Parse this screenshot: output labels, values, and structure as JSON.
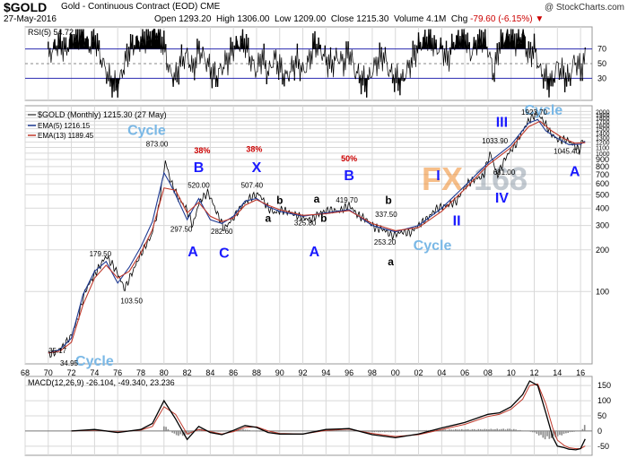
{
  "header": {
    "symbol": "$GOLD",
    "name": "Gold - Continuous Contract (EOD)",
    "exchange": "CME",
    "credit": "@ StockCharts.com",
    "date": "27-May-2016",
    "open_label": "Open",
    "open": "1293.20",
    "high_label": "High",
    "high": "1306.00",
    "low_label": "Low",
    "low": "1209.00",
    "close_label": "Close",
    "close": "1215.30",
    "volume_label": "Volume",
    "volume": "4.1M",
    "chg_label": "Chg",
    "chg": "-79.60 (-6.15%)"
  },
  "watermark": {
    "text1": "FX",
    "text2": "168",
    "color1": "#f08a2a",
    "color2": "#9aa6b2"
  },
  "colors": {
    "grid": "#d8d8d8",
    "price": "#000000",
    "ema5": "#1f3a93",
    "ema13": "#c0392b",
    "wave_blue": "#1a1aff",
    "cycle": "#7ab8e6",
    "pct_red": "#cc0000",
    "rsi_fill": "#000000"
  },
  "chart_data": [
    {
      "type": "line",
      "panel": "rsi",
      "legend": "RSI(5) 54.72",
      "y_ticks": [
        30,
        50,
        70
      ],
      "ylim": [
        0,
        100
      ],
      "reference_lines": [
        30,
        50,
        70
      ],
      "x": [
        1970,
        1970.5,
        1971,
        1971.5,
        1972,
        1972.5,
        1973,
        1973.5,
        1974,
        1974.5,
        1975,
        1975.5,
        1976,
        1976.5,
        1977,
        1977.5,
        1978,
        1978.5,
        1979,
        1979.5,
        1980,
        1980.5,
        1981,
        1981.5,
        1982,
        1982.5,
        1983,
        1983.5,
        1984,
        1984.5,
        1985,
        1985.5,
        1986,
        1986.5,
        1987,
        1987.5,
        1988,
        1988.5,
        1989,
        1989.5,
        1990,
        1990.5,
        1991,
        1991.5,
        1992,
        1992.5,
        1993,
        1993.5,
        1994,
        1994.5,
        1995,
        1995.5,
        1996,
        1996.5,
        1997,
        1997.5,
        1998,
        1998.5,
        1999,
        1999.5,
        2000,
        2000.5,
        2001,
        2001.5,
        2002,
        2002.5,
        2003,
        2003.5,
        2004,
        2004.5,
        2005,
        2005.5,
        2006,
        2006.5,
        2007,
        2007.5,
        2008,
        2008.5,
        2009,
        2009.5,
        2010,
        2010.5,
        2011,
        2011.5,
        2012,
        2012.5,
        2013,
        2013.5,
        2014,
        2014.5,
        2015,
        2015.5,
        2016,
        2016.4
      ],
      "values": [
        60,
        72,
        80,
        68,
        85,
        90,
        95,
        72,
        88,
        60,
        40,
        22,
        18,
        45,
        70,
        78,
        82,
        88,
        92,
        95,
        75,
        38,
        30,
        55,
        62,
        40,
        70,
        58,
        42,
        30,
        45,
        55,
        72,
        78,
        80,
        55,
        40,
        62,
        35,
        58,
        45,
        30,
        42,
        55,
        38,
        52,
        78,
        70,
        55,
        48,
        60,
        50,
        68,
        40,
        30,
        22,
        40,
        55,
        62,
        38,
        30,
        25,
        40,
        58,
        75,
        82,
        88,
        70,
        72,
        55,
        78,
        85,
        90,
        62,
        80,
        88,
        70,
        35,
        78,
        85,
        90,
        80,
        92,
        60,
        72,
        40,
        30,
        22,
        48,
        35,
        28,
        55,
        42,
        54.72
      ]
    },
    {
      "type": "line",
      "panel": "price",
      "scale": "log",
      "title": "$GOLD (Monthly) 1215.30 (27 May)",
      "y_ticks": [
        100,
        200,
        300,
        400,
        500,
        600,
        700,
        800,
        900,
        1000,
        1100,
        1200,
        1300,
        1400,
        1500,
        1600,
        1700,
        1800,
        1900,
        2000
      ],
      "y_tick_labels": [
        "100",
        "200",
        "300",
        "400",
        "500",
        "600",
        "700",
        "800",
        "900",
        "1000",
        "1100",
        "1200",
        "1300",
        "1400",
        "1500",
        "1600",
        "1700",
        "1800",
        "1900",
        "2000"
      ],
      "ylim": [
        30,
        2200
      ],
      "x_ticks": [
        1968,
        1970,
        1972,
        1974,
        1976,
        1978,
        1980,
        1982,
        1984,
        1986,
        1988,
        1990,
        1992,
        1994,
        1996,
        1998,
        2000,
        2002,
        2004,
        2006,
        2008,
        2010,
        2012,
        2014,
        2016
      ],
      "x_tick_labels": [
        "68",
        "70",
        "72",
        "74",
        "76",
        "78",
        "80",
        "82",
        "84",
        "86",
        "88",
        "90",
        "92",
        "94",
        "96",
        "98",
        "00",
        "02",
        "04",
        "06",
        "08",
        "10",
        "12",
        "14",
        "16"
      ],
      "series": [
        {
          "name": "$GOLD (Monthly) 1215.30 (27 May)",
          "x": [
            1970.0,
            1970.6,
            1971.3,
            1972.0,
            1972.6,
            1973.2,
            1973.7,
            1974.4,
            1975.0,
            1975.7,
            1976.6,
            1977.4,
            1978.2,
            1978.9,
            1979.5,
            1979.9,
            1980.1,
            1980.6,
            1981.2,
            1981.9,
            1982.5,
            1983.1,
            1983.8,
            1984.5,
            1985.2,
            1986.0,
            1986.8,
            1987.5,
            1988.2,
            1989.0,
            1989.6,
            1990.2,
            1991.0,
            1992.0,
            1992.7,
            1993.5,
            1994.3,
            1995.1,
            1996.0,
            1996.7,
            1997.5,
            1998.2,
            1999.0,
            1999.7,
            2000.6,
            2001.3,
            2002.0,
            2002.8,
            2003.6,
            2004.5,
            2005.3,
            2006.2,
            2006.9,
            2007.6,
            2008.2,
            2008.8,
            2009.6,
            2010.4,
            2011.2,
            2011.7,
            2012.3,
            2012.8,
            2013.4,
            2014.0,
            2014.8,
            2015.4,
            2015.9,
            2016.2,
            2016.4
          ],
          "values": [
            35.17,
            36,
            40,
            48,
            65,
            100,
            120,
            150,
            179.5,
            150,
            103.5,
            145,
            200,
            250,
            380,
            650,
            873.0,
            620,
            480,
            400,
            297.5,
            450,
            520.0,
            380,
            282.6,
            340,
            420,
            480,
            507.4,
            400,
            370,
            390,
            370,
            340,
            330,
            370,
            390,
            380,
            419.7,
            360,
            330,
            290,
            280,
            253.2,
            270,
            265,
            300,
            340,
            400,
            420,
            450,
            600,
            650,
            680,
            1000,
            681.0,
            950,
            1150,
            1550,
            1800,
            1923.7,
            1700,
            1400,
            1250,
            1250,
            1150,
            1045.4,
            1250,
            1215.3
          ]
        },
        {
          "name": "EMA(5) 1216.15",
          "x": [
            1970,
            1971,
            1972,
            1973,
            1974,
            1975,
            1976,
            1977,
            1978,
            1979,
            1980,
            1980.5,
            1981,
            1982,
            1983,
            1984,
            1985,
            1986,
            1987,
            1988,
            1989,
            1990,
            1992,
            1994,
            1996,
            1998,
            2000,
            2002,
            2004,
            2006,
            2008,
            2010,
            2011.5,
            2012.3,
            2013,
            2014,
            2015,
            2016,
            2016.4
          ],
          "values": [
            36,
            38,
            46,
            95,
            140,
            165,
            115,
            150,
            210,
            320,
            720,
            610,
            500,
            330,
            470,
            330,
            310,
            350,
            450,
            470,
            410,
            380,
            350,
            370,
            390,
            300,
            270,
            300,
            400,
            580,
            850,
            1150,
            1650,
            1750,
            1450,
            1280,
            1150,
            1160,
            1216.15
          ]
        },
        {
          "name": "EMA(13) 1189.45",
          "x": [
            1970,
            1971,
            1972,
            1973,
            1974,
            1975,
            1976,
            1977,
            1978,
            1979,
            1980,
            1981,
            1982,
            1983,
            1984,
            1985,
            1986,
            1987,
            1988,
            1989,
            1990,
            1992,
            1994,
            1996,
            1998,
            2000,
            2002,
            2004,
            2006,
            2008,
            2010,
            2011.5,
            2012.5,
            2013.5,
            2014.5,
            2015.5,
            2016.4
          ],
          "values": [
            36,
            37,
            43,
            80,
            125,
            155,
            125,
            140,
            190,
            280,
            560,
            540,
            370,
            440,
            350,
            320,
            340,
            420,
            460,
            420,
            390,
            355,
            365,
            385,
            310,
            275,
            290,
            380,
            550,
            820,
            1100,
            1550,
            1700,
            1450,
            1280,
            1180,
            1189.45
          ]
        }
      ],
      "annotations": [
        {
          "text": "Cycle",
          "kind": "cycle",
          "x": 1974,
          "y": 24
        },
        {
          "text": "34.95",
          "kind": "value",
          "x": 1971.8,
          "y": 27
        },
        {
          "text": "35.17",
          "kind": "value",
          "x": 1970.8,
          "y": 36
        },
        {
          "text": "179.50",
          "kind": "value",
          "x": 1974.5,
          "y": 180
        },
        {
          "text": "103.50",
          "kind": "value",
          "x": 1977.2,
          "y": 82
        },
        {
          "text": "Cycle",
          "kind": "cycle",
          "x": 1978.5,
          "y": 1350
        },
        {
          "text": "873.00",
          "kind": "value",
          "x": 1979.4,
          "y": 1120
        },
        {
          "text": "38%",
          "kind": "pct",
          "x": 1983.3,
          "y": 1000
        },
        {
          "text": "B",
          "kind": "wave",
          "x": 1983.0,
          "y": 730
        },
        {
          "text": "520.00",
          "kind": "value",
          "x": 1983.0,
          "y": 560
        },
        {
          "text": "297.50",
          "kind": "value",
          "x": 1981.5,
          "y": 270
        },
        {
          "text": "A",
          "kind": "wave",
          "x": 1982.5,
          "y": 180
        },
        {
          "text": "282.60",
          "kind": "value",
          "x": 1985.0,
          "y": 260
        },
        {
          "text": "C",
          "kind": "wave",
          "x": 1985.2,
          "y": 175
        },
        {
          "text": "38%",
          "kind": "pct",
          "x": 1987.8,
          "y": 1020
        },
        {
          "text": "X",
          "kind": "wave",
          "x": 1988.0,
          "y": 730
        },
        {
          "text": "507.40",
          "kind": "value",
          "x": 1987.6,
          "y": 560
        },
        {
          "text": "b",
          "kind": "minor",
          "x": 1990.0,
          "y": 430
        },
        {
          "text": "a",
          "kind": "minor",
          "x": 1989.0,
          "y": 318
        },
        {
          "text": "a",
          "kind": "minor",
          "x": 1993.2,
          "y": 440
        },
        {
          "text": "325.80",
          "kind": "value",
          "x": 1992.2,
          "y": 300
        },
        {
          "text": "b",
          "kind": "minor",
          "x": 1993.8,
          "y": 320
        },
        {
          "text": "A",
          "kind": "wave",
          "x": 1993.0,
          "y": 180
        },
        {
          "text": "50%",
          "kind": "pct",
          "x": 1996.0,
          "y": 870
        },
        {
          "text": "B",
          "kind": "wave",
          "x": 1996.0,
          "y": 640
        },
        {
          "text": "419.70",
          "kind": "value",
          "x": 1995.8,
          "y": 440
        },
        {
          "text": "b",
          "kind": "minor",
          "x": 1999.4,
          "y": 430
        },
        {
          "text": "337.50",
          "kind": "value",
          "x": 1999.2,
          "y": 345
        },
        {
          "text": "253.20",
          "kind": "value",
          "x": 1999.1,
          "y": 218
        },
        {
          "text": "a",
          "kind": "minor",
          "x": 1999.6,
          "y": 155
        },
        {
          "text": "Cycle",
          "kind": "cycle",
          "x": 2003.2,
          "y": 200
        },
        {
          "text": "I",
          "kind": "wave",
          "x": 2003.7,
          "y": 640
        },
        {
          "text": "II",
          "kind": "wave",
          "x": 2005.3,
          "y": 300
        },
        {
          "text": "III",
          "kind": "wave",
          "x": 2009.2,
          "y": 1550
        },
        {
          "text": "1033.90",
          "kind": "value",
          "x": 2008.6,
          "y": 1180
        },
        {
          "text": "681.00",
          "kind": "value",
          "x": 2009.4,
          "y": 700
        },
        {
          "text": "IV",
          "kind": "wave",
          "x": 2009.2,
          "y": 440
        },
        {
          "text": "Cycle",
          "kind": "cycle",
          "x": 2012.8,
          "y": 3400
        },
        {
          "text": "1923.70",
          "kind": "value",
          "x": 2012.0,
          "y": 2550
        },
        {
          "text": "1045.40",
          "kind": "value",
          "x": 2014.8,
          "y": 990
        },
        {
          "text": "A",
          "kind": "wave",
          "x": 2015.5,
          "y": 680
        }
      ]
    },
    {
      "type": "line",
      "panel": "macd",
      "legend": "MACD(12,26,9) -26.104, -49.340, 23.236",
      "y_ticks": [
        -50,
        0,
        50,
        100,
        150
      ],
      "ylim": [
        -80,
        180
      ],
      "series": [
        {
          "name": "MACD(12,26,9) -26.104",
          "x": [
            1972,
            1974,
            1976,
            1978,
            1979,
            1980,
            1981,
            1982,
            1983,
            1984,
            1985,
            1986,
            1987,
            1988,
            1989,
            1990,
            1992,
            1994,
            1996,
            1998,
            2000,
            2002,
            2004,
            2006,
            2008,
            2009,
            2010,
            2011,
            2011.6,
            2012.3,
            2013,
            2013.6,
            2014,
            2014.6,
            2015,
            2015.6,
            2016,
            2016.4
          ],
          "values": [
            0,
            5,
            -5,
            5,
            25,
            100,
            40,
            -28,
            15,
            -5,
            -12,
            2,
            18,
            12,
            -5,
            -10,
            -10,
            5,
            8,
            -12,
            -22,
            -10,
            10,
            28,
            55,
            60,
            80,
            120,
            165,
            150,
            60,
            -20,
            -50,
            -55,
            -60,
            -62,
            -58,
            -26.104
          ]
        },
        {
          "name": "-49.340",
          "x": [
            1972,
            1974,
            1976,
            1978,
            1979,
            1980,
            1981,
            1982,
            1983,
            1984,
            1985,
            1986,
            1987,
            1988,
            1989,
            1990,
            1992,
            1994,
            1996,
            1998,
            2000,
            2002,
            2004,
            2006,
            2008,
            2009,
            2010,
            2011,
            2011.6,
            2012.3,
            2013,
            2013.6,
            2014,
            2014.6,
            2015,
            2015.6,
            2016,
            2016.4
          ],
          "values": [
            0,
            3,
            -3,
            3,
            15,
            80,
            55,
            -10,
            5,
            -2,
            -10,
            -2,
            12,
            14,
            0,
            -8,
            -10,
            2,
            6,
            -8,
            -18,
            -12,
            5,
            22,
            48,
            55,
            72,
            105,
            150,
            155,
            90,
            10,
            -30,
            -48,
            -55,
            -58,
            -58,
            -49.34
          ]
        },
        {
          "name": "23.236",
          "type": "histogram",
          "x": [
            1980,
            1981,
            1982,
            1983,
            1984,
            1985,
            1986,
            1987,
            1988,
            1990,
            1992,
            1994,
            1996,
            1998,
            2000,
            2002,
            2004,
            2006,
            2008,
            2010,
            2012,
            2013,
            2014,
            2015,
            2016,
            2016.4
          ],
          "values": [
            20,
            -15,
            -18,
            10,
            -3,
            -2,
            4,
            6,
            -2,
            -2,
            0,
            3,
            2,
            -4,
            -4,
            2,
            5,
            6,
            7,
            8,
            -5,
            -30,
            -20,
            -5,
            0,
            23.236
          ]
        }
      ]
    }
  ]
}
